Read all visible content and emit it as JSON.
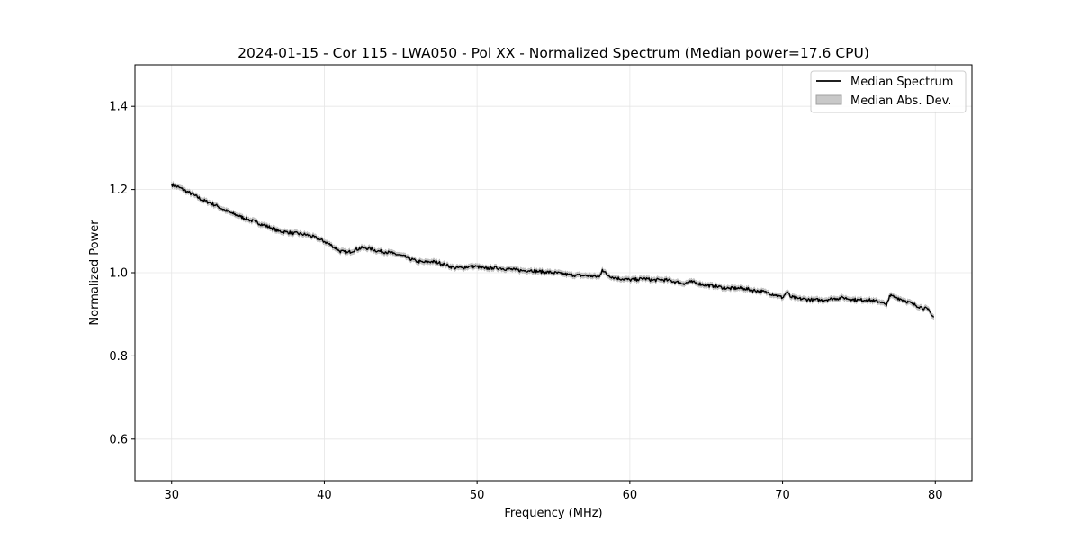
{
  "chart_data": {
    "type": "line",
    "title": "2024-01-15 - Cor 115 - LWA050 - Pol XX - Normalized Spectrum (Median power=17.6 CPU)",
    "xlabel": "Frequency (MHz)",
    "ylabel": "Normalized Power",
    "xlim": [
      27.6,
      82.4
    ],
    "ylim": [
      0.5,
      1.5
    ],
    "xticks": [
      30,
      40,
      50,
      60,
      70,
      80
    ],
    "yticks": [
      0.6,
      0.8,
      1.0,
      1.2,
      1.4
    ],
    "xtick_labels": [
      "30",
      "40",
      "50",
      "60",
      "70",
      "80"
    ],
    "ytick_labels": [
      "0.6",
      "0.8",
      "1.0",
      "1.2",
      "1.4"
    ],
    "grid": true,
    "legend_position": "top-right",
    "series": [
      {
        "name": "Median Spectrum",
        "kind": "line",
        "color": "#000000",
        "x": [
          30.0,
          30.5,
          31.0,
          31.5,
          32.0,
          32.5,
          33.0,
          33.5,
          34.0,
          34.5,
          35.0,
          35.5,
          36.0,
          36.5,
          37.0,
          37.5,
          38.0,
          38.5,
          39.0,
          39.5,
          40.0,
          40.5,
          41.0,
          41.5,
          42.0,
          42.5,
          43.0,
          43.5,
          44.0,
          44.5,
          45.0,
          45.5,
          46.0,
          46.5,
          47.0,
          47.5,
          48.0,
          48.5,
          49.0,
          49.5,
          50.0,
          50.5,
          51.0,
          51.5,
          52.0,
          52.5,
          53.0,
          53.5,
          54.0,
          54.5,
          55.0,
          55.5,
          56.0,
          56.5,
          57.0,
          57.5,
          58.0,
          58.2,
          58.5,
          59.0,
          59.5,
          60.0,
          60.5,
          61.0,
          61.5,
          62.0,
          62.5,
          63.0,
          63.5,
          64.0,
          64.5,
          65.0,
          65.5,
          66.0,
          66.5,
          67.0,
          67.5,
          68.0,
          68.5,
          69.0,
          69.5,
          70.0,
          70.3,
          70.5,
          71.0,
          71.5,
          72.0,
          72.5,
          73.0,
          73.5,
          74.0,
          74.5,
          75.0,
          75.5,
          76.0,
          76.5,
          76.8,
          77.0,
          77.5,
          78.0,
          78.5,
          79.0,
          79.5,
          79.9
        ],
        "y": [
          1.212,
          1.205,
          1.195,
          1.186,
          1.175,
          1.168,
          1.16,
          1.15,
          1.142,
          1.135,
          1.128,
          1.122,
          1.115,
          1.108,
          1.1,
          1.098,
          1.095,
          1.093,
          1.09,
          1.083,
          1.075,
          1.065,
          1.052,
          1.048,
          1.055,
          1.06,
          1.058,
          1.052,
          1.05,
          1.046,
          1.042,
          1.035,
          1.028,
          1.025,
          1.027,
          1.024,
          1.018,
          1.012,
          1.012,
          1.015,
          1.015,
          1.01,
          1.012,
          1.011,
          1.009,
          1.007,
          1.005,
          1.006,
          1.003,
          1.002,
          1.0,
          0.998,
          0.995,
          0.994,
          0.993,
          0.992,
          0.99,
          1.008,
          0.995,
          0.988,
          0.985,
          0.983,
          0.984,
          0.986,
          0.982,
          0.983,
          0.982,
          0.978,
          0.974,
          0.978,
          0.974,
          0.97,
          0.968,
          0.965,
          0.962,
          0.963,
          0.962,
          0.958,
          0.956,
          0.952,
          0.947,
          0.94,
          0.955,
          0.942,
          0.938,
          0.936,
          0.935,
          0.934,
          0.936,
          0.938,
          0.94,
          0.936,
          0.934,
          0.935,
          0.932,
          0.93,
          0.92,
          0.945,
          0.94,
          0.933,
          0.925,
          0.918,
          0.912,
          0.893
        ]
      },
      {
        "name": "Median Abs. Dev.",
        "kind": "band",
        "color": "#c8c8c8",
        "half_width": 0.006
      }
    ]
  },
  "legend": {
    "line_color": "#000000",
    "band_fill": "#c8c8c8",
    "band_edge": "#a0a0a0"
  }
}
